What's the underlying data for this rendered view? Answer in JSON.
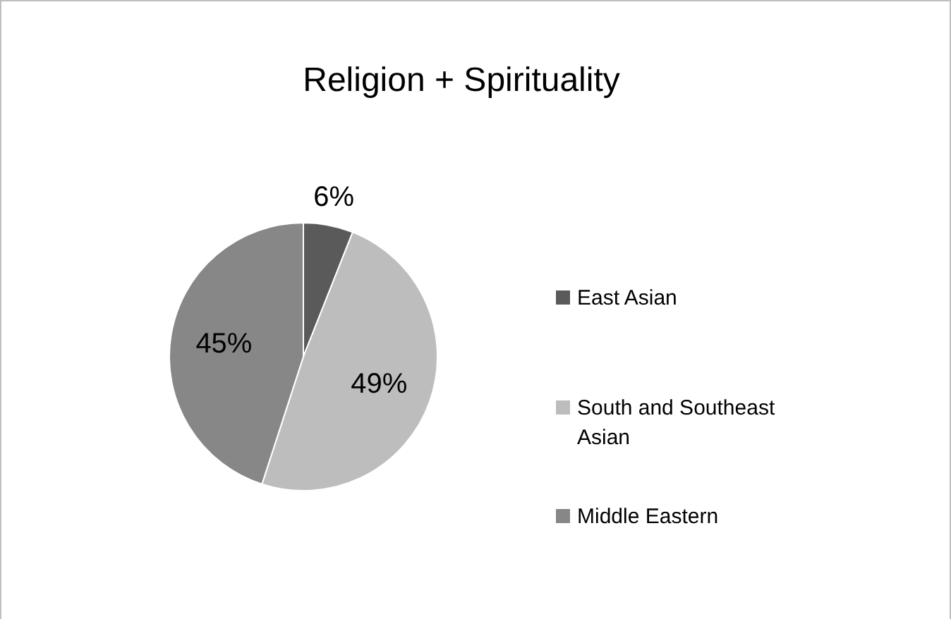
{
  "chart_data": {
    "type": "pie",
    "title": "Religion + Spirituality",
    "categories": [
      "East Asian",
      "South and Southeast Asian",
      "Middle Eastern"
    ],
    "values": [
      6,
      49,
      45
    ],
    "value_labels": [
      "6%",
      "49%",
      "45%"
    ],
    "colors": [
      "#5a5a5a",
      "#bdbdbd",
      "#878787"
    ],
    "legend": "right"
  }
}
